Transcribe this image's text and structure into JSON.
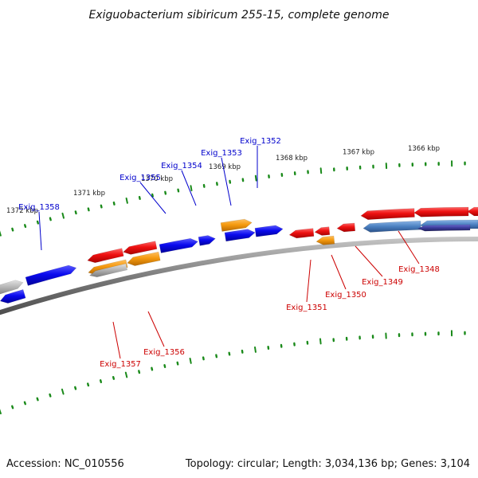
{
  "title": "Exiguobacterium sibiricum 255-15, complete genome",
  "footer": {
    "accession": "Accession: NC_010556",
    "topology": "Topology: circular; Length: 3,034,136 bp; Genes: 3,104"
  },
  "colors": {
    "forward_label": "#0000cc",
    "reverse_label": "#cc0000",
    "backbone": "#7a7a7a",
    "tick_dots": "#1a8a1a",
    "gene_red": "#ee1111",
    "gene_blue": "#0a0aee",
    "gene_orange": "#f59a10",
    "gene_gray": "#b0b0b0",
    "gene_steelblue": "#4a7fc0",
    "gene_navy": "#3a3a9a"
  },
  "scale_labels": [
    "1366 kbp",
    "1367 kbp",
    "1368 kbp",
    "1369 kbp",
    "1370 kbp",
    "1371 kbp",
    "1372 kbp"
  ],
  "forward_genes": [
    "Exig_1352",
    "Exig_1353",
    "Exig_1354",
    "Exig_1355",
    "Exig_1358"
  ],
  "reverse_genes": [
    "Exig_1348",
    "Exig_1349",
    "Exig_1350",
    "Exig_1351",
    "Exig_1356",
    "Exig_1357"
  ]
}
